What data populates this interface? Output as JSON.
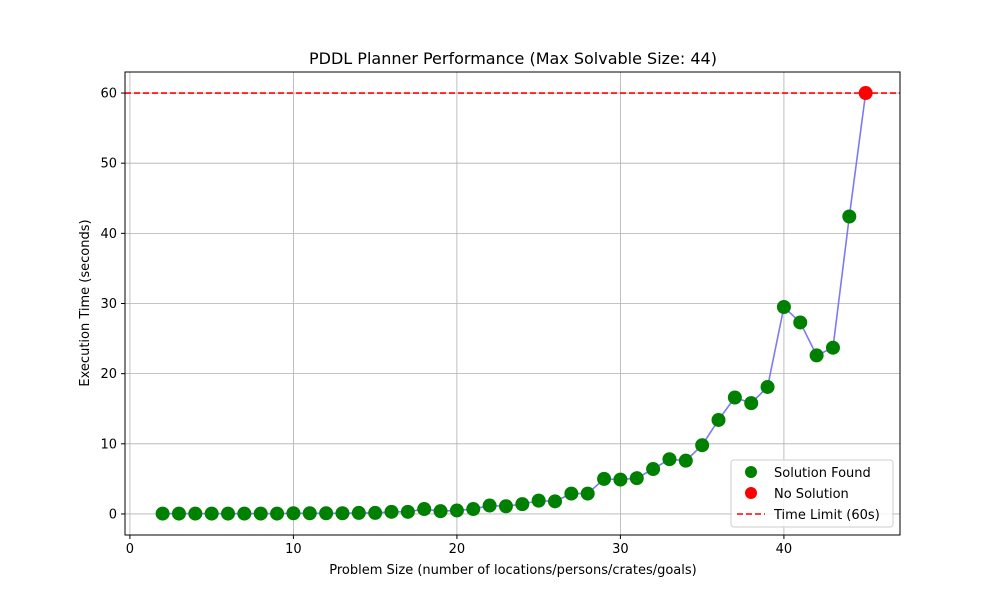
{
  "chart_data": {
    "type": "scatter",
    "title": "PDDL Planner Performance (Max Solvable Size: 44)",
    "xlabel": "Problem Size (number of locations/persons/crates/goals)",
    "ylabel": "Execution Time (seconds)",
    "xlim": [
      -0.3,
      47.1
    ],
    "ylim": [
      -3,
      63
    ],
    "xticks": [
      0,
      10,
      20,
      30,
      40
    ],
    "yticks": [
      0,
      10,
      20,
      30,
      40,
      50,
      60
    ],
    "grid": true,
    "line_color": "#7b7bf5",
    "series": [
      {
        "name": "Solution Found",
        "color": "#008000",
        "x": [
          2,
          3,
          4,
          5,
          6,
          7,
          8,
          9,
          10,
          11,
          12,
          13,
          14,
          15,
          16,
          17,
          18,
          19,
          20,
          21,
          22,
          23,
          24,
          25,
          26,
          27,
          28,
          29,
          30,
          31,
          32,
          33,
          34,
          35,
          36,
          37,
          38,
          39,
          40,
          41,
          42,
          43,
          44
        ],
        "y": [
          0.05,
          0.05,
          0.05,
          0.05,
          0.05,
          0.05,
          0.05,
          0.05,
          0.1,
          0.1,
          0.1,
          0.1,
          0.15,
          0.15,
          0.3,
          0.3,
          0.7,
          0.4,
          0.5,
          0.7,
          1.2,
          1.1,
          1.4,
          1.9,
          1.8,
          2.9,
          2.9,
          5.0,
          4.9,
          5.1,
          6.4,
          7.8,
          7.6,
          9.8,
          13.4,
          16.6,
          15.8,
          18.1,
          29.5,
          27.3,
          22.6,
          23.7,
          42.4
        ]
      },
      {
        "name": "No Solution",
        "color": "#ff0000",
        "x": [
          45
        ],
        "y": [
          60
        ]
      }
    ],
    "reference_line": {
      "name": "Time Limit (60s)",
      "y": 60,
      "color": "#ff0000",
      "style": "dashed"
    },
    "legend": {
      "placement": "lower-right",
      "entries": [
        "Solution Found",
        "No Solution",
        "Time Limit (60s)"
      ]
    }
  }
}
